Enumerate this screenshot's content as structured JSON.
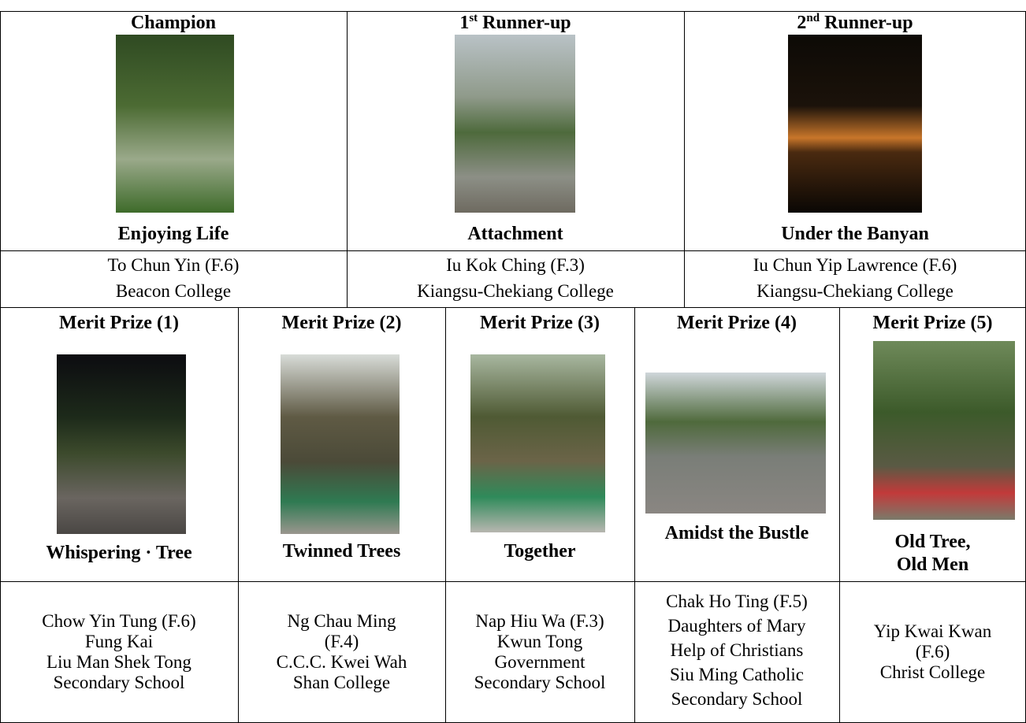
{
  "top_prizes": [
    {
      "heading": {
        "main": "Champion"
      },
      "title": "Enjoying Life",
      "lines": [
        "To Chun Yin (F.6)",
        "Beacon College"
      ]
    },
    {
      "heading": {
        "main": "1",
        "sup": "st",
        "rest": "Runner-up"
      },
      "title": "Attachment",
      "lines": [
        "Iu Kok Ching (F.3)",
        "Kiangsu-Chekiang College"
      ]
    },
    {
      "heading": {
        "main": "2",
        "sup": "nd",
        "rest": "Runner-up"
      },
      "title": "Under the Banyan",
      "lines": [
        "Iu Chun Yip Lawrence (F.6)",
        "Kiangsu-Chekiang College"
      ]
    }
  ],
  "merit_prizes": [
    {
      "heading": "Merit Prize (1)",
      "title": [
        "Whispering · Tree"
      ],
      "lines": [
        "Chow Yin Tung (F.6)",
        "Fung Kai",
        "Liu Man Shek Tong",
        "Secondary School"
      ]
    },
    {
      "heading": "Merit Prize (2)",
      "title": [
        "Twinned Trees"
      ],
      "lines": [
        "Ng Chau Ming",
        "(F.4)",
        "C.C.C. Kwei Wah",
        "Shan College"
      ]
    },
    {
      "heading": "Merit Prize (3)",
      "title": [
        "Together"
      ],
      "lines": [
        "Nap Hiu Wa (F.3)",
        "Kwun Tong",
        "Government",
        "Secondary School"
      ]
    },
    {
      "heading": "Merit Prize (4)",
      "title": [
        "Amidst the Bustle"
      ],
      "lines": [
        "Chak Ho Ting (F.5)",
        "Daughters of Mary",
        "Help of Christians",
        "Siu Ming Catholic",
        "Secondary School"
      ]
    },
    {
      "heading": "Merit Prize (5)",
      "title": [
        "Old Tree,",
        "Old Men"
      ],
      "lines": [
        "Yip Kwai Kwan",
        "(F.6)",
        "Christ College"
      ]
    }
  ]
}
